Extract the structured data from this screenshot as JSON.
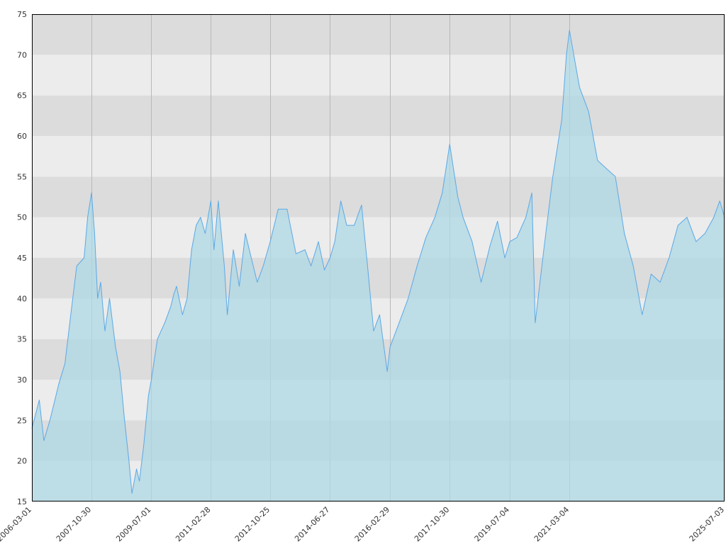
{
  "chart_data": {
    "type": "area",
    "title": "",
    "xlabel": "",
    "ylabel": "",
    "xlim": [
      "2006-03-01",
      "2025-07-03"
    ],
    "ylim": [
      15,
      75
    ],
    "grid": true,
    "legend": "none",
    "colors": {
      "line": "#5aa9e6",
      "fill": "#add8e6",
      "band_dark": "#dcdcdc",
      "band_light": "#ececec",
      "vgrid": "#b8b8b8",
      "frame": "#000000"
    },
    "x_ticks": [
      "2006-03-01",
      "2007-10-30",
      "2009-07-01",
      "2011-02-28",
      "2012-10-25",
      "2014-06-27",
      "2016-02-29",
      "2017-10-30",
      "2019-07-04",
      "2021-03-04",
      "2025-07-03"
    ],
    "y_ticks": [
      15,
      20,
      25,
      30,
      35,
      40,
      45,
      50,
      55,
      60,
      65,
      70,
      75
    ],
    "series": [
      {
        "x": [
          "2006-03-01",
          "2006-05-15",
          "2006-07-01",
          "2006-09-01",
          "2006-12-01",
          "2007-02-01",
          "2007-04-01",
          "2007-06-01",
          "2007-08-15",
          "2007-09-20",
          "2007-10-30",
          "2007-11-30",
          "2007-12-31",
          "2008-01-31",
          "2008-03-15",
          "2008-05-01",
          "2008-07-01",
          "2008-08-15",
          "2008-10-01",
          "2008-11-15",
          "2008-12-15",
          "2009-01-31",
          "2009-03-01",
          "2009-04-15",
          "2009-06-01",
          "2009-07-01",
          "2009-09-01",
          "2009-11-15",
          "2010-01-15",
          "2010-02-15",
          "2010-03-15",
          "2010-05-15",
          "2010-07-01",
          "2010-08-15",
          "2010-10-01",
          "2010-11-15",
          "2011-01-01",
          "2011-02-28",
          "2011-04-01",
          "2011-05-15",
          "2011-07-15",
          "2011-08-15",
          "2011-10-15",
          "2011-12-15",
          "2012-02-15",
          "2012-04-15",
          "2012-06-15",
          "2012-08-15",
          "2012-10-25",
          "2013-01-15",
          "2013-04-15",
          "2013-07-15",
          "2013-10-15",
          "2013-12-15",
          "2014-03-01",
          "2014-05-01",
          "2014-06-27",
          "2014-08-15",
          "2014-10-15",
          "2014-12-15",
          "2015-03-01",
          "2015-05-15",
          "2015-07-15",
          "2015-09-15",
          "2015-11-15",
          "2016-02-01",
          "2016-02-29",
          "2016-06-01",
          "2016-09-01",
          "2016-12-01",
          "2017-03-01",
          "2017-06-01",
          "2017-08-15",
          "2017-10-30",
          "2018-01-20",
          "2018-03-15",
          "2018-06-15",
          "2018-09-15",
          "2018-12-15",
          "2019-03-01",
          "2019-05-15",
          "2019-07-04",
          "2019-09-15",
          "2019-12-15",
          "2020-02-15",
          "2020-03-20",
          "2020-06-15",
          "2020-09-15",
          "2020-12-15",
          "2021-02-01",
          "2021-03-04",
          "2021-06-15",
          "2021-09-15",
          "2021-12-15",
          "2022-03-15",
          "2022-06-15",
          "2022-09-15",
          "2022-12-15",
          "2023-03-15",
          "2023-06-15",
          "2023-09-15",
          "2023-12-15",
          "2024-03-15",
          "2024-06-15",
          "2024-09-15",
          "2024-12-15",
          "2025-03-15",
          "2025-05-15",
          "2025-07-03"
        ],
        "values": [
          24,
          27.5,
          22.5,
          25,
          29.5,
          32,
          38,
          44,
          45,
          50,
          53,
          48,
          40,
          42,
          36,
          40,
          34,
          31,
          25,
          20,
          16,
          19,
          17.5,
          22,
          28,
          30,
          35,
          37,
          39,
          40.5,
          41.5,
          38,
          40,
          46,
          49,
          50,
          48,
          52,
          46,
          52,
          44,
          38,
          46,
          41.5,
          48,
          45,
          42,
          44,
          47,
          51,
          51,
          45.5,
          46,
          44,
          47,
          43.5,
          45,
          47,
          52,
          49,
          49,
          51.5,
          44,
          36,
          38,
          31,
          34,
          37,
          40,
          44,
          47.5,
          50,
          53,
          59,
          52.5,
          50,
          47,
          42,
          46.5,
          49.5,
          45,
          47,
          47.5,
          50,
          53,
          37,
          46,
          55,
          62,
          70,
          73,
          66,
          63,
          57,
          56,
          55,
          48,
          44,
          38,
          43,
          42,
          45,
          49,
          50,
          47,
          48,
          50,
          52,
          50
        ]
      }
    ]
  }
}
